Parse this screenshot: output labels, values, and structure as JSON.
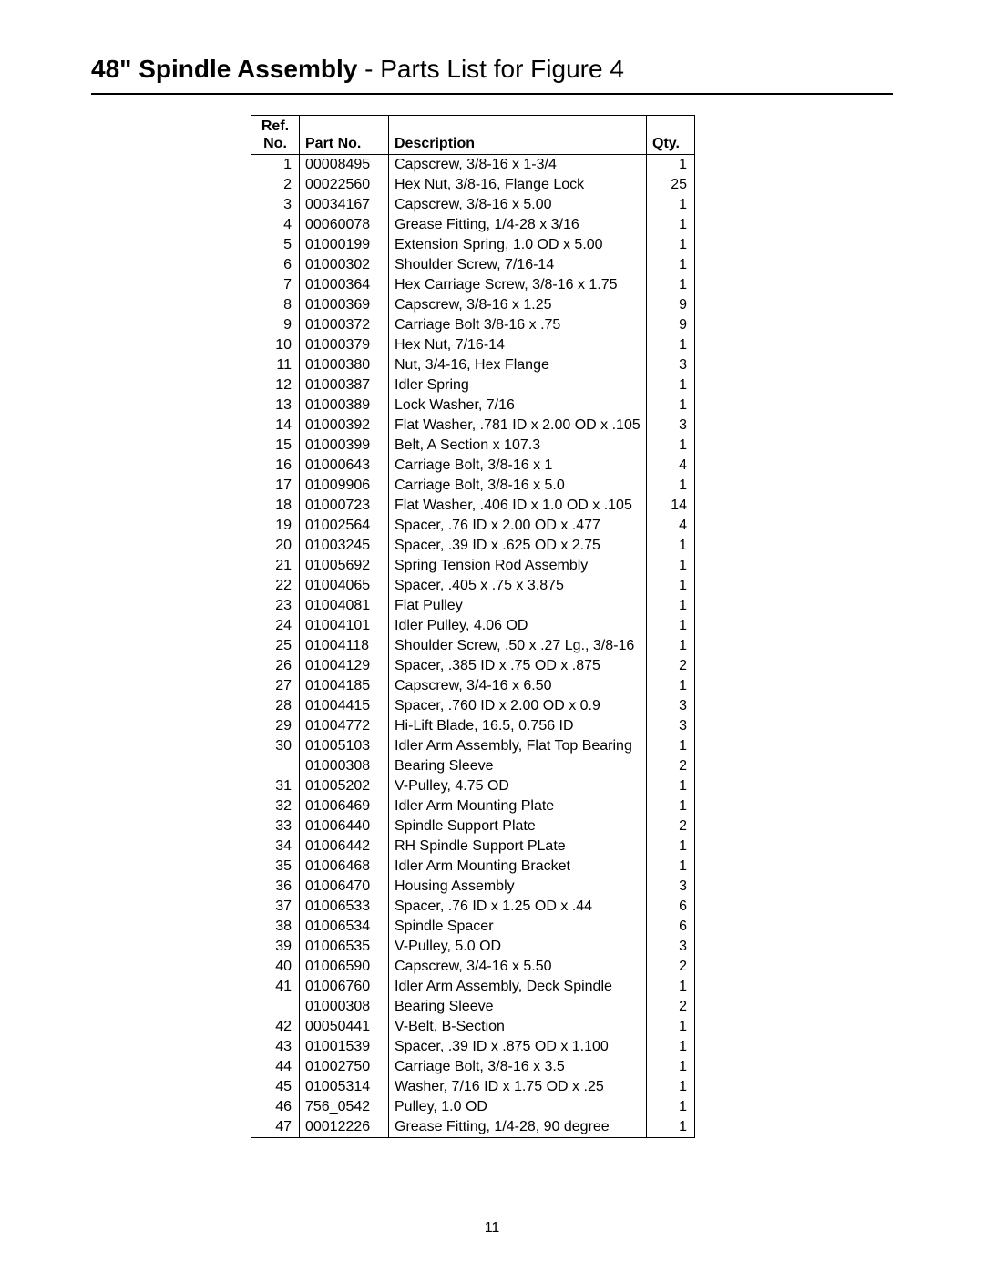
{
  "title_bold": "48\" Spindle Assembly",
  "title_rest": " - Parts List for Figure 4",
  "page_number": "11",
  "headers": {
    "ref_line1": "Ref.",
    "ref_line2": "No.",
    "part": "Part No.",
    "description": "Description",
    "qty": "Qty."
  },
  "columns": [
    "ref",
    "part",
    "desc",
    "qty"
  ],
  "rows": [
    [
      "1",
      "00008495",
      "Capscrew, 3/8-16 x 1-3/4",
      "1"
    ],
    [
      "2",
      "00022560",
      "Hex Nut, 3/8-16, Flange Lock",
      "25"
    ],
    [
      "3",
      "00034167",
      "Capscrew, 3/8-16 x 5.00",
      "1"
    ],
    [
      "4",
      "00060078",
      "Grease Fitting, 1/4-28 x 3/16",
      "1"
    ],
    [
      "5",
      "01000199",
      "Extension Spring, 1.0 OD x 5.00",
      "1"
    ],
    [
      "6",
      "01000302",
      "Shoulder Screw, 7/16-14",
      "1"
    ],
    [
      "7",
      "01000364",
      "Hex Carriage Screw, 3/8-16 x 1.75",
      "1"
    ],
    [
      "8",
      "01000369",
      "Capscrew, 3/8-16 x 1.25",
      "9"
    ],
    [
      "9",
      "01000372",
      "Carriage Bolt 3/8-16 x .75",
      "9"
    ],
    [
      "10",
      "01000379",
      "Hex Nut, 7/16-14",
      "1"
    ],
    [
      "11",
      "01000380",
      "Nut, 3/4-16, Hex Flange",
      "3"
    ],
    [
      "12",
      "01000387",
      "Idler Spring",
      "1"
    ],
    [
      "13",
      "01000389",
      "Lock Washer, 7/16",
      "1"
    ],
    [
      "14",
      "01000392",
      "Flat Washer, .781 ID x 2.00 OD x .105",
      "3"
    ],
    [
      "15",
      "01000399",
      "Belt, A Section x 107.3",
      "1"
    ],
    [
      "16",
      "01000643",
      "Carriage Bolt, 3/8-16 x 1",
      "4"
    ],
    [
      "17",
      "01009906",
      "Carriage Bolt, 3/8-16 x 5.0",
      "1"
    ],
    [
      "18",
      "01000723",
      "Flat Washer, .406 ID x 1.0 OD x .105",
      "14"
    ],
    [
      "19",
      "01002564",
      "Spacer, .76 ID x 2.00 OD x .477",
      "4"
    ],
    [
      "20",
      "01003245",
      "Spacer, .39 ID x .625 OD x 2.75",
      "1"
    ],
    [
      "21",
      "01005692",
      "Spring Tension Rod Assembly",
      "1"
    ],
    [
      "22",
      "01004065",
      "Spacer, .405 x .75 x 3.875",
      "1"
    ],
    [
      "23",
      "01004081",
      "Flat Pulley",
      "1"
    ],
    [
      "24",
      "01004101",
      "Idler Pulley, 4.06 OD",
      "1"
    ],
    [
      "25",
      "01004118",
      "Shoulder Screw, .50 x .27 Lg., 3/8-16",
      "1"
    ],
    [
      "26",
      "01004129",
      "Spacer, .385 ID x .75 OD x .875",
      "2"
    ],
    [
      "27",
      "01004185",
      "Capscrew, 3/4-16 x 6.50",
      "1"
    ],
    [
      "28",
      "01004415",
      "Spacer, .760 ID x 2.00 OD x 0.9",
      "3"
    ],
    [
      "29",
      "01004772",
      "Hi-Lift Blade, 16.5, 0.756 ID",
      "3"
    ],
    [
      "30",
      "01005103",
      "Idler Arm Assembly, Flat Top Bearing",
      "1"
    ],
    [
      "",
      "01000308",
      "Bearing Sleeve",
      "2"
    ],
    [
      "31",
      "01005202",
      "V-Pulley, 4.75 OD",
      "1"
    ],
    [
      "32",
      "01006469",
      "Idler Arm Mounting Plate",
      "1"
    ],
    [
      "33",
      "01006440",
      "Spindle Support Plate",
      "2"
    ],
    [
      "34",
      "01006442",
      "RH Spindle Support PLate",
      "1"
    ],
    [
      "35",
      "01006468",
      "Idler Arm Mounting Bracket",
      "1"
    ],
    [
      "36",
      "01006470",
      "Housing Assembly",
      "3"
    ],
    [
      "37",
      "01006533",
      "Spacer, .76 ID x 1.25 OD x .44",
      "6"
    ],
    [
      "38",
      "01006534",
      "Spindle Spacer",
      "6"
    ],
    [
      "39",
      "01006535",
      "V-Pulley, 5.0 OD",
      "3"
    ],
    [
      "40",
      "01006590",
      "Capscrew, 3/4-16 x 5.50",
      "2"
    ],
    [
      "41",
      "01006760",
      "Idler Arm Assembly, Deck Spindle",
      "1"
    ],
    [
      "",
      "01000308",
      "Bearing Sleeve",
      "2"
    ],
    [
      "42",
      "00050441",
      "V-Belt, B-Section",
      "1"
    ],
    [
      "43",
      "01001539",
      "Spacer, .39 ID x .875 OD x 1.100",
      "1"
    ],
    [
      "44",
      "01002750",
      "Carriage Bolt, 3/8-16 x 3.5",
      "1"
    ],
    [
      "45",
      "01005314",
      "Washer, 7/16 ID x 1.75 OD x .25",
      "1"
    ],
    [
      "46",
      "756_0542",
      "Pulley, 1.0 OD",
      "1"
    ],
    [
      "47",
      "00012226",
      "Grease Fitting, 1/4-28, 90 degree",
      "1"
    ]
  ]
}
